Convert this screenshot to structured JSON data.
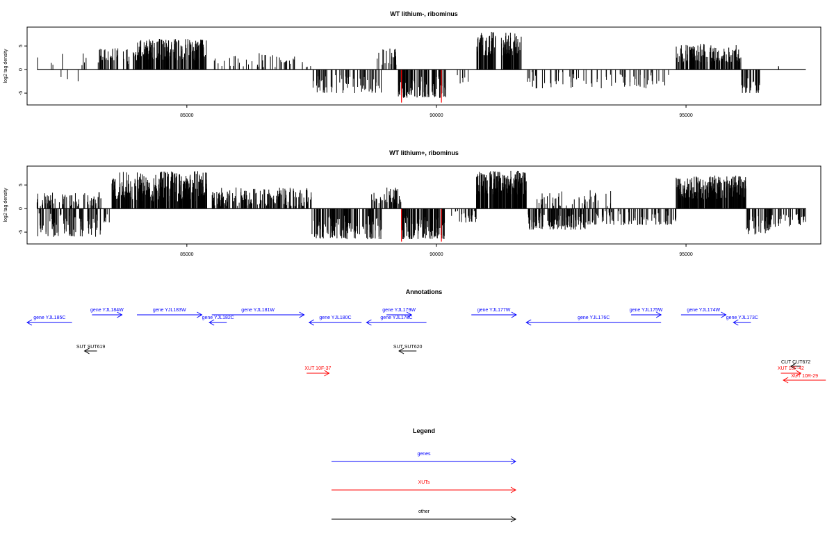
{
  "chart_data": [
    {
      "type": "bar",
      "title": "WT lithium-, ribominus",
      "ylabel": "log2 tag density",
      "xlim": [
        81800,
        97700
      ],
      "ylim": [
        -7.5,
        9
      ],
      "x_ticks": [
        85000,
        90000,
        95000
      ],
      "y_ticks": [
        -5,
        0,
        5
      ],
      "baseline_from": 82000,
      "baseline_to": 97400,
      "highlight_bars": [
        {
          "x": 89300,
          "value": -7.0
        },
        {
          "x": 90100,
          "value": -7.0
        }
      ],
      "regions": [
        {
          "from": 82000,
          "to": 83000,
          "min": 0.5,
          "max": 3.5,
          "density": 0.008,
          "sign": 1
        },
        {
          "from": 82300,
          "to": 83000,
          "min": -2.5,
          "max": -1.0,
          "density": 0.004,
          "sign": -1
        },
        {
          "from": 83200,
          "to": 83700,
          "min": 1.5,
          "max": 4.5,
          "density": 0.06,
          "sign": 1
        },
        {
          "from": 83700,
          "to": 84000,
          "min": 1.0,
          "max": 4.5,
          "density": 0.05,
          "sign": 1
        },
        {
          "from": 84000,
          "to": 85400,
          "min": 2.0,
          "max": 6.5,
          "density": 0.15,
          "sign": 1
        },
        {
          "from": 85500,
          "to": 87500,
          "min": 0.5,
          "max": 3.5,
          "density": 0.025,
          "sign": 1
        },
        {
          "from": 87500,
          "to": 88900,
          "min": -5.0,
          "max": -1.0,
          "density": 0.05,
          "sign": -1
        },
        {
          "from": 88800,
          "to": 89200,
          "min": 1.0,
          "max": 4.5,
          "density": 0.06,
          "sign": 1
        },
        {
          "from": 89200,
          "to": 90200,
          "min": -6.0,
          "max": -1.5,
          "density": 0.1,
          "sign": -1
        },
        {
          "from": 90400,
          "to": 90700,
          "min": -3.5,
          "max": -1.0,
          "density": 0.02,
          "sign": -1
        },
        {
          "from": 90800,
          "to": 91200,
          "min": 3.0,
          "max": 8.0,
          "density": 0.15,
          "sign": 1
        },
        {
          "from": 91300,
          "to": 91700,
          "min": 3.0,
          "max": 8.0,
          "density": 0.15,
          "sign": 1
        },
        {
          "from": 91800,
          "to": 94700,
          "min": -4.0,
          "max": -0.5,
          "density": 0.025,
          "sign": -1
        },
        {
          "from": 94800,
          "to": 96100,
          "min": 1.5,
          "max": 5.5,
          "density": 0.12,
          "sign": 1
        },
        {
          "from": 96100,
          "to": 96500,
          "min": -5.0,
          "max": -1.5,
          "density": 0.08,
          "sign": -1
        },
        {
          "from": 96800,
          "to": 96900,
          "min": 0.5,
          "max": 1.5,
          "density": 0.02,
          "sign": 1
        }
      ]
    },
    {
      "type": "bar",
      "title": "WT lithium+, ribominus",
      "ylabel": "log2 tag density",
      "xlim": [
        81800,
        97700
      ],
      "ylim": [
        -7.5,
        9
      ],
      "x_ticks": [
        85000,
        90000,
        95000
      ],
      "y_ticks": [
        -5,
        0,
        5
      ],
      "baseline_from": 82000,
      "baseline_to": 97400,
      "highlight_bars": [
        {
          "x": 89300,
          "value": -7.0
        },
        {
          "x": 90100,
          "value": -7.0
        }
      ],
      "regions": [
        {
          "from": 82000,
          "to": 83300,
          "min": 0.5,
          "max": 3.5,
          "density": 0.06,
          "sign": 1
        },
        {
          "from": 82000,
          "to": 83300,
          "min": -6.0,
          "max": -1.0,
          "density": 0.07,
          "sign": -1
        },
        {
          "from": 83300,
          "to": 83500,
          "min": -3.0,
          "max": -1.0,
          "density": 0.04,
          "sign": -1
        },
        {
          "from": 83500,
          "to": 85400,
          "min": 1.5,
          "max": 8.0,
          "density": 0.2,
          "sign": 1
        },
        {
          "from": 85500,
          "to": 87500,
          "min": 0.5,
          "max": 4.5,
          "density": 0.1,
          "sign": 1
        },
        {
          "from": 87500,
          "to": 88900,
          "min": -6.5,
          "max": -1.5,
          "density": 0.1,
          "sign": -1
        },
        {
          "from": 88700,
          "to": 89300,
          "min": 1.0,
          "max": 4.5,
          "density": 0.08,
          "sign": 1
        },
        {
          "from": 89300,
          "to": 90200,
          "min": -6.5,
          "max": -1.5,
          "density": 0.15,
          "sign": -1
        },
        {
          "from": 90300,
          "to": 90800,
          "min": -3.0,
          "max": -0.5,
          "density": 0.05,
          "sign": -1
        },
        {
          "from": 90800,
          "to": 91800,
          "min": 3.0,
          "max": 8.0,
          "density": 0.25,
          "sign": 1
        },
        {
          "from": 91800,
          "to": 93000,
          "min": -4.5,
          "max": -1.0,
          "density": 0.1,
          "sign": -1
        },
        {
          "from": 92000,
          "to": 93500,
          "min": 0.5,
          "max": 4.0,
          "density": 0.03,
          "sign": 1
        },
        {
          "from": 93000,
          "to": 94800,
          "min": -3.5,
          "max": -0.5,
          "density": 0.05,
          "sign": -1
        },
        {
          "from": 94800,
          "to": 96200,
          "min": 2.0,
          "max": 7.0,
          "density": 0.2,
          "sign": 1
        },
        {
          "from": 96200,
          "to": 96700,
          "min": -5.5,
          "max": -1.5,
          "density": 0.1,
          "sign": -1
        },
        {
          "from": 96700,
          "to": 97400,
          "min": -4.0,
          "max": -1.0,
          "density": 0.05,
          "sign": -1
        }
      ]
    }
  ],
  "annotations": {
    "title": "Annotations",
    "xlim": [
      81800,
      97700
    ],
    "features": [
      {
        "label": "gene YJL185C",
        "kind": "gene",
        "from": 82700,
        "to": 81800,
        "row": 1
      },
      {
        "label": "gene YJL184W",
        "kind": "gene",
        "from": 83100,
        "to": 83700,
        "row": 0
      },
      {
        "label": "gene YJL183W",
        "kind": "gene",
        "from": 84000,
        "to": 85300,
        "row": 0
      },
      {
        "label": "gene YJL182C",
        "kind": "gene",
        "from": 85800,
        "to": 85450,
        "row": 1
      },
      {
        "label": "gene YJL181W",
        "kind": "gene",
        "from": 85500,
        "to": 87350,
        "row": 0
      },
      {
        "label": "gene YJL180C",
        "kind": "gene",
        "from": 88500,
        "to": 87450,
        "row": 1
      },
      {
        "label": "gene YJL179W",
        "kind": "gene",
        "from": 89000,
        "to": 89500,
        "row": 0
      },
      {
        "label": "gene YJL178C",
        "kind": "gene",
        "from": 89800,
        "to": 88600,
        "row": 1
      },
      {
        "label": "gene YJL177W",
        "kind": "gene",
        "from": 90700,
        "to": 91600,
        "row": 0
      },
      {
        "label": "gene YJL176C",
        "kind": "gene",
        "from": 94500,
        "to": 91800,
        "row": 1
      },
      {
        "label": "gene YJL175W",
        "kind": "gene",
        "from": 93900,
        "to": 94500,
        "row": 0
      },
      {
        "label": "gene YJL174W",
        "kind": "gene",
        "from": 94900,
        "to": 95800,
        "row": 0
      },
      {
        "label": "gene YJL173C",
        "kind": "gene",
        "from": 96300,
        "to": 95950,
        "row": 1
      },
      {
        "label": "SUT SUT619",
        "kind": "other",
        "from": 83200,
        "to": 82950,
        "row": 3
      },
      {
        "label": "SUT SUT620",
        "kind": "other",
        "from": 89600,
        "to": 89250,
        "row": 3
      },
      {
        "label": "CUT CUT672",
        "kind": "other",
        "from": 97300,
        "to": 97100,
        "row": 4
      },
      {
        "label": "XUT 10F-37",
        "kind": "xut",
        "from": 87400,
        "to": 87850,
        "row": 5
      },
      {
        "label": "XUT 10F-42",
        "kind": "xut",
        "from": 96900,
        "to": 97300,
        "row": 5
      },
      {
        "label": "XUT 10R-29",
        "kind": "xut",
        "from": 97800,
        "to": 96950,
        "row": 6
      }
    ]
  },
  "legend": {
    "title": "Legend",
    "items": [
      {
        "label": "genes",
        "color": "#0000ff"
      },
      {
        "label": "XUTs",
        "color": "#ff0000"
      },
      {
        "label": "other",
        "color": "#000000"
      }
    ]
  },
  "colors": {
    "gene": "#0000ff",
    "xut": "#ff0000",
    "other": "#000000",
    "highlight": "#ff0000",
    "bars": "#000000"
  }
}
